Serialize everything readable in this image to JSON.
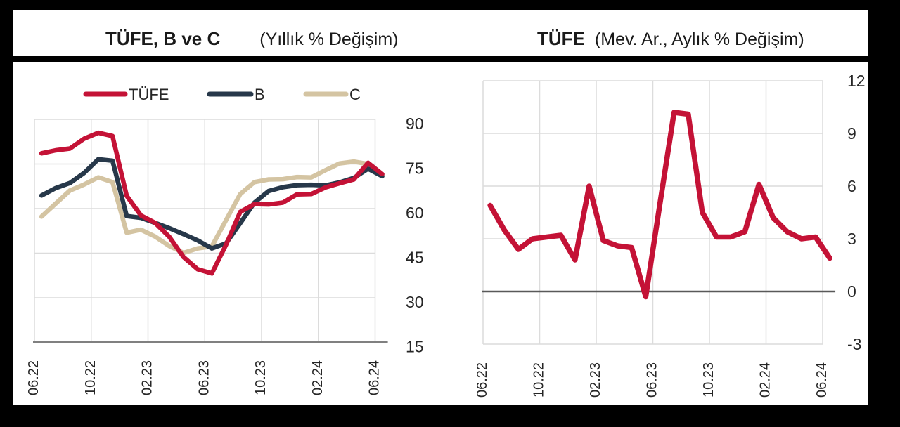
{
  "header": {
    "left_title": "TÜFE, B ve C",
    "left_subtitle": "(Yıllık % Değişim)",
    "right_title": "TÜFE",
    "right_subtitle": "(Mev. Ar., Aylık % Değişim)"
  },
  "colors": {
    "tufe_red": "#c41236",
    "b_navy": "#27384a",
    "c_tan": "#d4c4a2",
    "gridline": "#dcdcdc",
    "left_axis": "#808080",
    "zero_line": "#595959",
    "text": "#262626",
    "frame": "#000000",
    "background": "#ffffff"
  },
  "legend": {
    "items": [
      {
        "label": "TÜFE",
        "color": "#c41236"
      },
      {
        "label": "B",
        "color": "#27384a"
      },
      {
        "label": "C",
        "color": "#d4c4a2"
      }
    ]
  },
  "chart_data": [
    {
      "type": "line",
      "title": "TÜFE, B ve C",
      "subtitle": "(Yıllık % Değişim)",
      "x": [
        "06.22",
        "07.22",
        "08.22",
        "09.22",
        "10.22",
        "11.22",
        "12.22",
        "01.23",
        "02.23",
        "03.23",
        "04.23",
        "05.23",
        "06.23",
        "07.23",
        "08.23",
        "09.23",
        "10.23",
        "11.23",
        "12.23",
        "01.24",
        "02.24",
        "03.24",
        "04.24",
        "05.24",
        "06.24"
      ],
      "x_tick_labels": [
        "06.22",
        "10.22",
        "02.23",
        "06.23",
        "10.23",
        "02.24",
        "06.24"
      ],
      "ylim": [
        15,
        90
      ],
      "yticks": [
        90,
        75,
        60,
        45,
        30,
        15
      ],
      "grid": true,
      "legend_position": "top",
      "y_axis_side": "right",
      "series": [
        {
          "name": "C",
          "color": "#d4c4a2",
          "values": [
            57.3,
            61.7,
            66.1,
            68.1,
            70.5,
            68.9,
            51.9,
            52.9,
            50.6,
            47.4,
            45.1,
            46.6,
            47.3,
            56.1,
            64.9,
            68.9,
            69.8,
            69.9,
            70.6,
            70.5,
            72.9,
            75.2,
            75.8,
            75.0,
            71.4
          ]
        },
        {
          "name": "B",
          "color": "#27384a",
          "values": [
            64.4,
            66.9,
            68.6,
            72.0,
            76.6,
            76.1,
            57.5,
            56.9,
            55.2,
            53.4,
            51.4,
            49.3,
            46.6,
            48.3,
            55.1,
            62.0,
            65.9,
            67.2,
            67.9,
            68.0,
            67.8,
            68.8,
            70.3,
            73.4,
            70.9
          ]
        },
        {
          "name": "TÜFE",
          "color": "#c41236",
          "values": [
            78.6,
            79.6,
            80.2,
            83.5,
            85.5,
            84.4,
            64.3,
            57.7,
            55.2,
            50.5,
            43.7,
            39.6,
            38.2,
            47.8,
            58.9,
            61.5,
            61.4,
            62.0,
            64.8,
            64.9,
            67.1,
            68.5,
            69.8,
            75.4,
            71.6
          ]
        }
      ]
    },
    {
      "type": "line",
      "title": "TÜFE",
      "subtitle": "(Mev. Ar., Aylık % Değişim)",
      "x": [
        "06.22",
        "07.22",
        "08.22",
        "09.22",
        "10.22",
        "11.22",
        "12.22",
        "01.23",
        "02.23",
        "03.23",
        "04.23",
        "05.23",
        "06.23",
        "07.23",
        "08.23",
        "09.23",
        "10.23",
        "11.23",
        "12.23",
        "01.24",
        "02.24",
        "03.24",
        "04.24",
        "05.24",
        "06.24"
      ],
      "x_tick_labels": [
        "06.22",
        "10.22",
        "02.23",
        "06.23",
        "10.23",
        "02.24",
        "06.24"
      ],
      "ylim": [
        -3,
        12
      ],
      "yticks": [
        12,
        9,
        6,
        3,
        0,
        -3
      ],
      "grid": true,
      "zero_line": true,
      "legend_position": "none",
      "y_axis_side": "right",
      "series": [
        {
          "name": "TÜFE",
          "color": "#c41236",
          "values": [
            4.9,
            3.5,
            2.4,
            3.0,
            3.1,
            3.2,
            1.8,
            6.0,
            2.9,
            2.6,
            2.5,
            -0.3,
            5.0,
            10.2,
            10.1,
            4.5,
            3.1,
            3.1,
            3.4,
            6.1,
            4.2,
            3.4,
            3.0,
            3.1,
            1.9
          ]
        }
      ]
    }
  ]
}
